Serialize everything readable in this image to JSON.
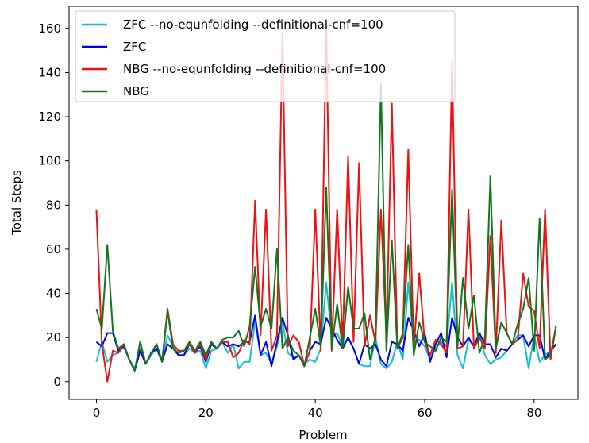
{
  "chart_data": {
    "type": "line",
    "xlabel": "Problem",
    "ylabel": "Total Steps",
    "xlim": [
      -5,
      88
    ],
    "ylim": [
      -8,
      170
    ],
    "xticks": [
      0,
      20,
      40,
      60,
      80
    ],
    "yticks": [
      0,
      20,
      40,
      60,
      80,
      100,
      120,
      140,
      160
    ],
    "xtick_labels": [
      "0",
      "20",
      "40",
      "60",
      "80"
    ],
    "ytick_labels": [
      "0",
      "20",
      "40",
      "60",
      "80",
      "100",
      "120",
      "140",
      "160"
    ],
    "grid": false,
    "legend_position": "top-left",
    "x": [
      0,
      1,
      2,
      3,
      4,
      5,
      6,
      7,
      8,
      9,
      10,
      11,
      12,
      13,
      14,
      15,
      16,
      17,
      18,
      19,
      20,
      21,
      22,
      23,
      24,
      25,
      26,
      27,
      28,
      29,
      30,
      31,
      32,
      33,
      34,
      35,
      36,
      37,
      38,
      39,
      40,
      41,
      42,
      43,
      44,
      45,
      46,
      47,
      48,
      49,
      50,
      51,
      52,
      53,
      54,
      55,
      56,
      57,
      58,
      59,
      60,
      61,
      62,
      63,
      64,
      65,
      66,
      67,
      68,
      69,
      70,
      71,
      72,
      73,
      74,
      75,
      76,
      77,
      78,
      79,
      80,
      81,
      82,
      83,
      84
    ],
    "series": [
      {
        "name": "ZFC --no-equnfolding --definitional-cnf=100",
        "color": "#17becf",
        "values": [
          9,
          18,
          9,
          12,
          13,
          16,
          10,
          6,
          15,
          8,
          12,
          15,
          9,
          21,
          16,
          12,
          12,
          15,
          13,
          14,
          6,
          14,
          15,
          18,
          13,
          17,
          6,
          9,
          9,
          27,
          12,
          13,
          8,
          16,
          27,
          13,
          11,
          12,
          8,
          10,
          9,
          15,
          45,
          20,
          22,
          16,
          20,
          15,
          8,
          7,
          7,
          20,
          8,
          6,
          9,
          18,
          10,
          45,
          18,
          19,
          16,
          10,
          15,
          18,
          16,
          45,
          12,
          6,
          19,
          16,
          22,
          12,
          8,
          10,
          11,
          14,
          17,
          21,
          21,
          6,
          21,
          9,
          12,
          14,
          17
        ]
      },
      {
        "name": "ZFC",
        "color": "#0000ee",
        "values": [
          18,
          16,
          22,
          22,
          14,
          16,
          10,
          5,
          14,
          8,
          13,
          15,
          9,
          17,
          15,
          12,
          12,
          17,
          13,
          16,
          9,
          17,
          15,
          18,
          16,
          17,
          16,
          18,
          18,
          30,
          12,
          18,
          7,
          18,
          29,
          21,
          10,
          12,
          7,
          14,
          18,
          17,
          29,
          24,
          19,
          15,
          20,
          15,
          8,
          17,
          15,
          17,
          10,
          7,
          18,
          17,
          14,
          29,
          23,
          16,
          22,
          9,
          17,
          22,
          11,
          29,
          20,
          16,
          20,
          16,
          22,
          17,
          17,
          11,
          15,
          14,
          17,
          19,
          21,
          16,
          21,
          21,
          10,
          14,
          17
        ]
      },
      {
        "name": "NBG --no-equnfolding --definitional-cnf=100",
        "color": "#ee1111",
        "values": [
          78,
          17,
          0,
          14,
          13,
          17,
          10,
          5,
          18,
          8,
          13,
          17,
          9,
          33,
          17,
          14,
          14,
          17,
          13,
          17,
          10,
          18,
          15,
          18,
          18,
          11,
          13,
          19,
          17,
          82,
          21,
          78,
          14,
          21,
          158,
          16,
          21,
          18,
          7,
          14,
          78,
          14,
          162,
          14,
          78,
          16,
          102,
          18,
          99,
          16,
          30,
          18,
          78,
          20,
          126,
          15,
          20,
          105,
          15,
          49,
          18,
          12,
          19,
          17,
          13,
          145,
          15,
          16,
          78,
          15,
          20,
          15,
          66,
          13,
          73,
          22,
          17,
          19,
          49,
          34,
          32,
          15,
          78,
          10,
          25
        ]
      },
      {
        "name": "NBG",
        "color": "#11771f",
        "values": [
          33,
          24,
          62,
          23,
          15,
          17,
          10,
          5,
          18,
          8,
          13,
          17,
          9,
          32,
          15,
          13,
          14,
          18,
          14,
          18,
          12,
          18,
          15,
          19,
          20,
          20,
          23,
          16,
          25,
          52,
          25,
          33,
          24,
          60,
          15,
          20,
          14,
          12,
          7,
          20,
          33,
          16,
          88,
          15,
          35,
          15,
          43,
          24,
          24,
          31,
          10,
          20,
          135,
          14,
          64,
          15,
          22,
          62,
          12,
          27,
          18,
          16,
          14,
          20,
          18,
          87,
          16,
          47,
          24,
          39,
          13,
          20,
          93,
          15,
          27,
          22,
          17,
          26,
          33,
          47,
          14,
          74,
          10,
          12,
          25
        ]
      }
    ]
  }
}
